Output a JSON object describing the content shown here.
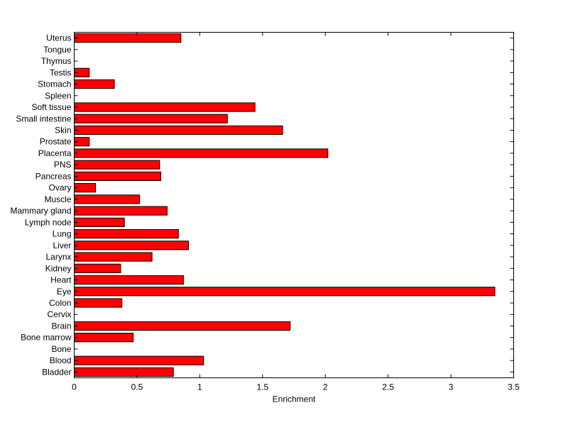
{
  "chart_data": {
    "type": "bar",
    "orientation": "horizontal",
    "xlabel": "Enrichment",
    "ylabel": "",
    "title": "",
    "xlim": [
      0,
      3.5
    ],
    "x_ticks": [
      0,
      0.5,
      1,
      1.5,
      2,
      2.5,
      3,
      3.5
    ],
    "x_tick_labels": [
      "0",
      "0.5",
      "1",
      "1.5",
      "2",
      "2.5",
      "3",
      "3.5"
    ],
    "bar_color": "#ff0000",
    "bar_edge_color": "#000000",
    "grid": false,
    "categories": [
      "Bladder",
      "Blood",
      "Bone",
      "Bone marrow",
      "Brain",
      "Cervix",
      "Colon",
      "Eye",
      "Heart",
      "Kidney",
      "Larynx",
      "Liver",
      "Lung",
      "Lymph node",
      "Mammary gland",
      "Muscle",
      "Ovary",
      "Pancreas",
      "PNS",
      "Placenta",
      "Prostate",
      "Skin",
      "Small intestine",
      "Soft tissue",
      "Spleen",
      "Stomach",
      "Testis",
      "Thymus",
      "Tongue",
      "Uterus"
    ],
    "values": [
      0.79,
      1.03,
      0,
      0.47,
      1.72,
      0,
      0.38,
      3.35,
      0.87,
      0.37,
      0.62,
      0.91,
      0.83,
      0.4,
      0.74,
      0.52,
      0.17,
      0.69,
      0.68,
      2.02,
      0.12,
      1.66,
      1.22,
      1.44,
      0,
      0.32,
      0.12,
      0,
      0,
      0.85
    ]
  }
}
